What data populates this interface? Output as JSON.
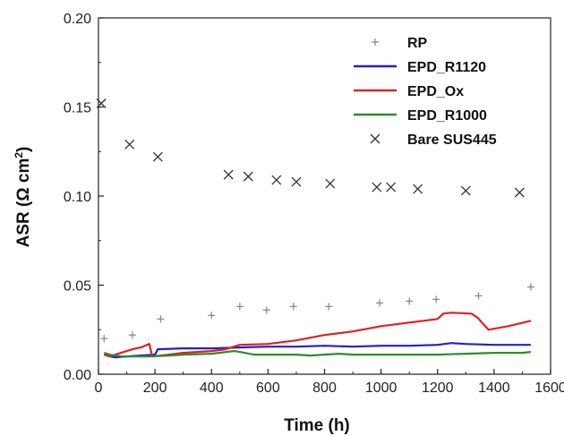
{
  "chart_data": {
    "type": "scatter",
    "xlabel": "Time (h)",
    "ylabel_main": "ASR (Ω cm",
    "ylabel_sup": "2",
    "ylabel_tail": ")",
    "xlim": [
      0,
      1600
    ],
    "ylim": [
      0.0,
      0.2
    ],
    "x_ticks": [
      "0",
      "200",
      "400",
      "600",
      "800",
      "1000",
      "1200",
      "1400",
      "1600"
    ],
    "y_ticks": [
      "0.00",
      "0.05",
      "0.10",
      "0.15",
      "0.20"
    ],
    "grid": false,
    "legend_position": "top-right",
    "series": [
      {
        "name": "RP",
        "style": "plus",
        "color": "#8c8c8c",
        "x": [
          20,
          120,
          220,
          400,
          500,
          595,
          690,
          815,
          995,
          1100,
          1195,
          1345,
          1530
        ],
        "y": [
          0.02,
          0.022,
          0.031,
          0.033,
          0.038,
          0.036,
          0.038,
          0.038,
          0.04,
          0.041,
          0.042,
          0.044,
          0.049
        ]
      },
      {
        "name": "EPD_R1120",
        "style": "line",
        "color": "#1f1fd6",
        "x": [
          20,
          40,
          60,
          100,
          150,
          200,
          210,
          300,
          400,
          500,
          600,
          700,
          800,
          900,
          1000,
          1100,
          1200,
          1250,
          1300,
          1400,
          1500,
          1530
        ],
        "y": [
          0.011,
          0.01,
          0.0095,
          0.01,
          0.0105,
          0.011,
          0.014,
          0.0145,
          0.0145,
          0.015,
          0.0155,
          0.0155,
          0.016,
          0.0155,
          0.016,
          0.016,
          0.0165,
          0.0175,
          0.017,
          0.0165,
          0.0165,
          0.0165
        ]
      },
      {
        "name": "EPD_Ox",
        "style": "line",
        "color": "#e02020",
        "x": [
          20,
          40,
          80,
          120,
          150,
          180,
          190,
          250,
          300,
          400,
          450,
          500,
          600,
          700,
          800,
          900,
          1000,
          1100,
          1200,
          1220,
          1250,
          1320,
          1340,
          1380,
          1450,
          1530
        ],
        "y": [
          0.011,
          0.01,
          0.012,
          0.014,
          0.015,
          0.017,
          0.01,
          0.011,
          0.012,
          0.013,
          0.014,
          0.0165,
          0.017,
          0.019,
          0.022,
          0.024,
          0.027,
          0.029,
          0.031,
          0.034,
          0.0345,
          0.034,
          0.032,
          0.025,
          0.027,
          0.03
        ]
      },
      {
        "name": "EPD_R1000",
        "style": "line",
        "color": "#2e8b2e",
        "x": [
          20,
          40,
          80,
          120,
          180,
          250,
          300,
          400,
          480,
          500,
          550,
          600,
          700,
          750,
          800,
          850,
          900,
          1000,
          1100,
          1200,
          1300,
          1400,
          1500,
          1530
        ],
        "y": [
          0.012,
          0.011,
          0.01,
          0.01,
          0.01,
          0.0105,
          0.011,
          0.0115,
          0.013,
          0.0125,
          0.011,
          0.011,
          0.011,
          0.0105,
          0.011,
          0.0115,
          0.011,
          0.011,
          0.011,
          0.011,
          0.0115,
          0.012,
          0.012,
          0.0125
        ]
      },
      {
        "name": "Bare SUS445",
        "style": "cross",
        "color": "#333333",
        "x": [
          10,
          110,
          210,
          460,
          530,
          630,
          700,
          820,
          985,
          1035,
          1130,
          1300,
          1490
        ],
        "y": [
          0.152,
          0.129,
          0.122,
          0.112,
          0.111,
          0.109,
          0.108,
          0.107,
          0.105,
          0.105,
          0.104,
          0.103,
          0.102
        ]
      }
    ]
  }
}
